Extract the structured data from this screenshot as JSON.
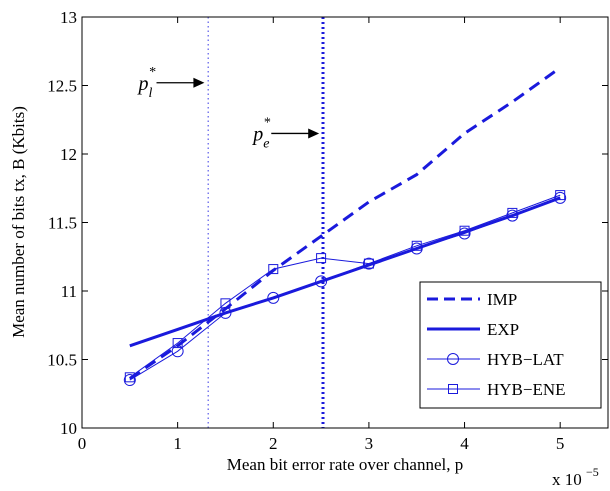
{
  "chart_data": {
    "type": "line",
    "xlabel": "Mean bit error rate over channel, p",
    "ylabel": "Mean number of bits tx, B (Kbits)",
    "x_multiplier_label": {
      "base": "x 10",
      "exponent": "−5"
    },
    "xlim": [
      0,
      5.5
    ],
    "ylim": [
      10,
      13
    ],
    "x_ticks": [
      0,
      1,
      2,
      3,
      4,
      5
    ],
    "x_tick_labels": [
      "0",
      "1",
      "2",
      "3",
      "4",
      "5"
    ],
    "y_ticks": [
      10,
      10.5,
      11,
      11.5,
      12,
      12.5,
      13
    ],
    "y_tick_labels": [
      "10",
      "10.5",
      "11",
      "11.5",
      "12",
      "12.5",
      "13"
    ],
    "grid": false,
    "legend_position": "bottom-right",
    "series": [
      {
        "name": "IMP",
        "style": "dashed",
        "color": "#1a1adc",
        "marker": "none",
        "width": 3,
        "x": [
          0.5,
          1.0,
          1.5,
          2.0,
          2.5,
          3.0,
          3.5,
          4.0,
          4.5,
          5.0
        ],
        "y": [
          10.36,
          10.6,
          10.87,
          11.15,
          11.4,
          11.65,
          11.85,
          12.15,
          12.38,
          12.63
        ]
      },
      {
        "name": "EXP",
        "style": "solid",
        "color": "#1a1adc",
        "marker": "none",
        "width": 3,
        "x": [
          0.5,
          1.0,
          1.5,
          2.0,
          2.5,
          3.0,
          3.5,
          4.0,
          4.5,
          5.0
        ],
        "y": [
          10.6,
          10.72,
          10.84,
          10.95,
          11.07,
          11.19,
          11.31,
          11.43,
          11.55,
          11.68
        ]
      },
      {
        "name": "HYB−LAT",
        "style": "solid",
        "color": "#1a1adc",
        "marker": "circle",
        "width": 1,
        "x": [
          0.5,
          1.0,
          1.5,
          2.0,
          2.5,
          3.0,
          3.5,
          4.0,
          4.5,
          5.0
        ],
        "y": [
          10.35,
          10.56,
          10.84,
          10.95,
          11.07,
          11.2,
          11.31,
          11.42,
          11.55,
          11.68
        ]
      },
      {
        "name": "HYB−ENE",
        "style": "solid",
        "color": "#1a1adc",
        "marker": "square",
        "width": 1,
        "x": [
          0.5,
          1.0,
          1.5,
          2.0,
          2.5,
          3.0,
          3.5,
          4.0,
          4.5,
          5.0
        ],
        "y": [
          10.37,
          10.62,
          10.91,
          11.16,
          11.24,
          11.2,
          11.33,
          11.44,
          11.57,
          11.7
        ]
      }
    ],
    "vertical_lines": [
      {
        "x": 1.32,
        "style": "dotted",
        "color": "#7a7aee",
        "width": 1.5
      },
      {
        "x": 2.52,
        "style": "dotted",
        "color": "#1a1adc",
        "width": 3
      }
    ],
    "annotations": [
      {
        "symbol": "p",
        "subscript": "l",
        "superscript": "*",
        "x": 0.8,
        "y": 12.52,
        "arrow_to_x": 1.28
      },
      {
        "symbol": "p",
        "subscript": "e",
        "superscript": "*",
        "x": 2.0,
        "y": 12.15,
        "arrow_to_x": 2.48
      }
    ]
  }
}
